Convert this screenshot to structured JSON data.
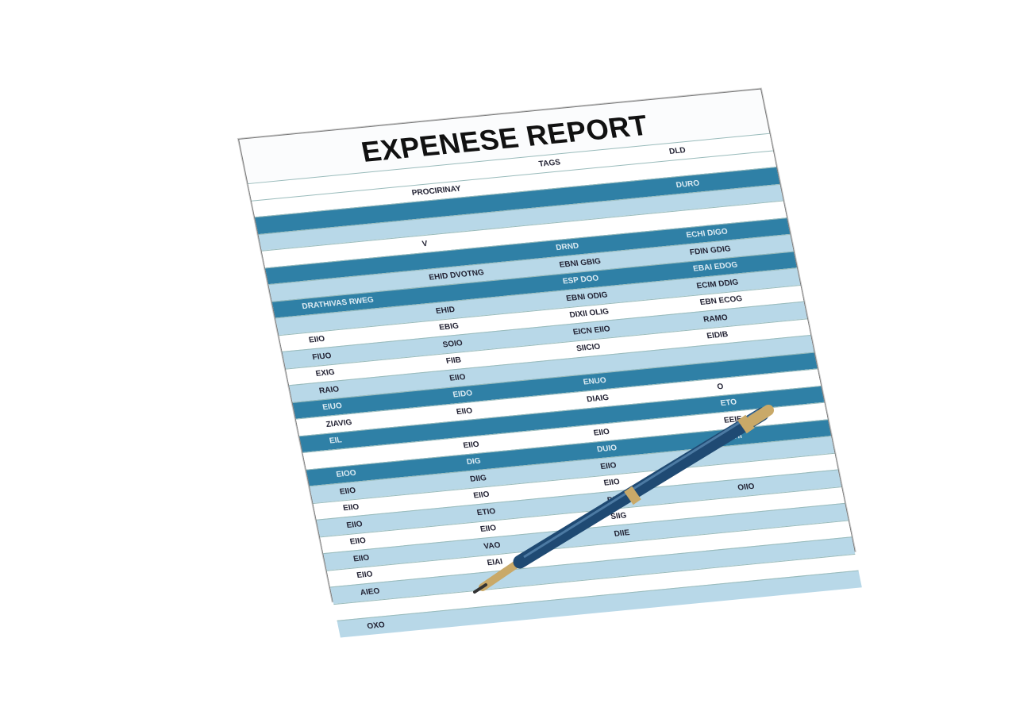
{
  "title": "EXPENESE REPORT",
  "colors": {
    "dark_band": "#2f80a6",
    "light_band": "#b8d8e8",
    "pen_body": "#1f4a73",
    "pen_trim": "#c9a968"
  },
  "rows": [
    {
      "type": "white",
      "cells": [
        "",
        "",
        "TAGS",
        "DLD"
      ]
    },
    {
      "type": "white",
      "cells": [
        "",
        "PROCIRINAY",
        "",
        ""
      ]
    },
    {
      "type": "dark",
      "cells": [
        "",
        "",
        "",
        "DURO"
      ]
    },
    {
      "type": "light",
      "cells": [
        "",
        "",
        "",
        ""
      ]
    },
    {
      "type": "white",
      "cells": [
        "",
        "V",
        "",
        ""
      ]
    },
    {
      "type": "dark",
      "cells": [
        "",
        "",
        "DRND",
        "ECHI DIGO"
      ]
    },
    {
      "type": "light",
      "cells": [
        "",
        "EHID DVOTNG",
        "EBNI GBIG",
        "FDIN GDIG"
      ]
    },
    {
      "type": "dark",
      "cells": [
        "DRATHIVAS RWEG",
        "",
        "ESP DOO",
        "EBAI EDOG"
      ]
    },
    {
      "type": "light",
      "cells": [
        "",
        "EHID",
        "EBNI ODIG",
        "ECIM DDIG"
      ]
    },
    {
      "type": "white",
      "cells": [
        "EIIO",
        "EBIG",
        "DIXII OLIG",
        "EBN ECOG"
      ]
    },
    {
      "type": "light",
      "cells": [
        "FIUO",
        "SOIO",
        "EICN EIIO",
        "RAMO"
      ]
    },
    {
      "type": "white",
      "cells": [
        "EXIG",
        "FIIB",
        "SIICIO",
        "EIDIB"
      ]
    },
    {
      "type": "light",
      "cells": [
        "RAIO",
        "EIIO",
        "",
        ""
      ]
    },
    {
      "type": "dark",
      "cells": [
        "EIUO",
        "EIDO",
        "ENUO",
        ""
      ]
    },
    {
      "type": "white",
      "cells": [
        "ZIAVIG",
        "EIIO",
        "DIAIG",
        "O"
      ]
    },
    {
      "type": "dark",
      "cells": [
        "EIL",
        "",
        "",
        "ETO"
      ]
    },
    {
      "type": "white",
      "cells": [
        "",
        "EIIO",
        "EIIO",
        "EEIE"
      ]
    },
    {
      "type": "dark",
      "cells": [
        "EIOO",
        "DIG",
        "DUIO",
        "ETII"
      ]
    },
    {
      "type": "light",
      "cells": [
        "EIIO",
        "DIIG",
        "EIIO",
        ""
      ]
    },
    {
      "type": "white",
      "cells": [
        "EIIO",
        "EIIO",
        "EIIO",
        ""
      ]
    },
    {
      "type": "light",
      "cells": [
        "EIIO",
        "ETIO",
        "DIIO",
        "OIIO"
      ]
    },
    {
      "type": "white",
      "cells": [
        "EIIO",
        "EIIO",
        "SIIG",
        ""
      ]
    },
    {
      "type": "light",
      "cells": [
        "EIIO",
        "VAO",
        "DIIE",
        ""
      ]
    },
    {
      "type": "white",
      "cells": [
        "EIIO",
        "EIAI",
        "",
        ""
      ]
    },
    {
      "type": "light",
      "cells": [
        "AIEO",
        "",
        "",
        ""
      ]
    },
    {
      "type": "white",
      "cells": [
        "",
        "",
        "",
        ""
      ]
    },
    {
      "type": "light",
      "cells": [
        "OXO",
        "",
        "",
        ""
      ]
    }
  ]
}
